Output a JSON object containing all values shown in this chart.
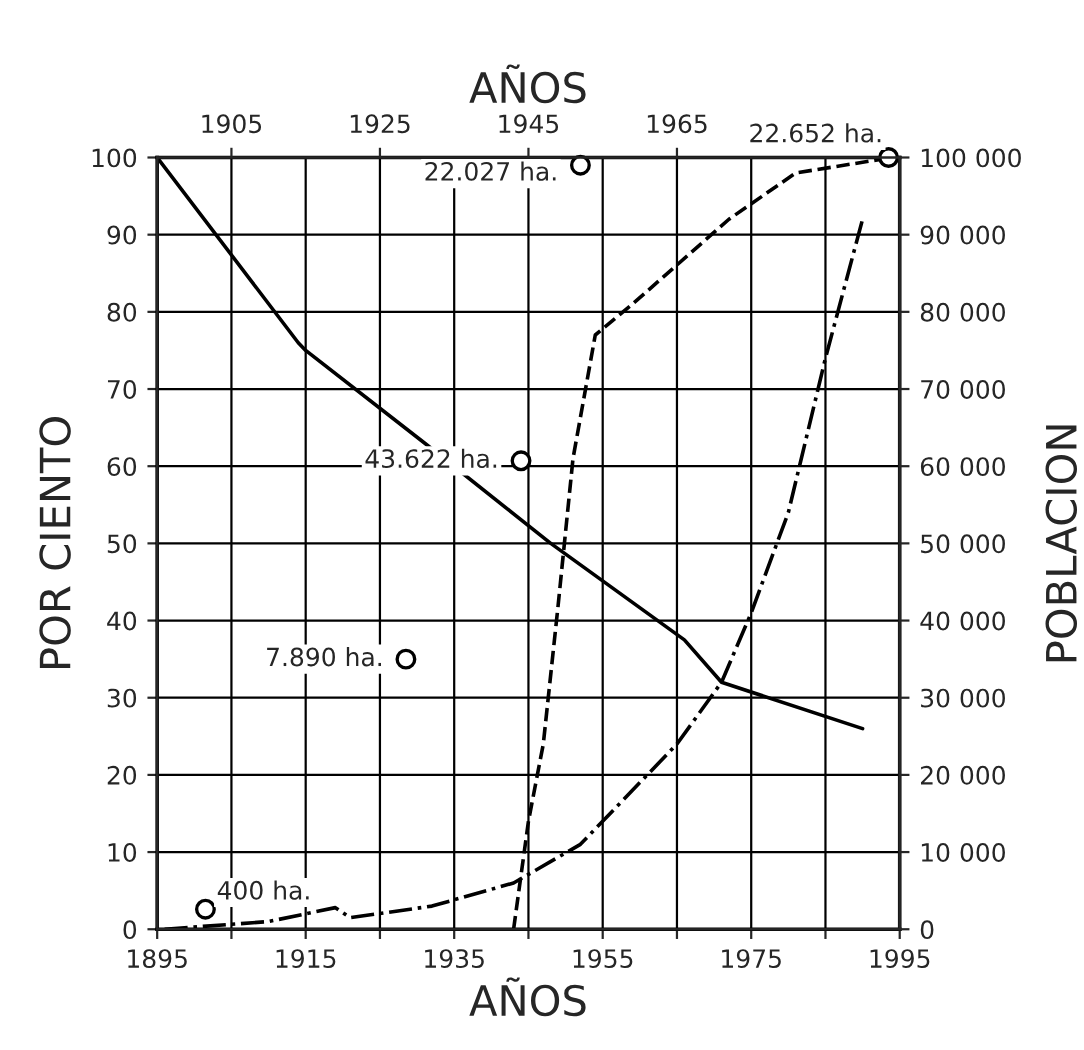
{
  "chart_data": {
    "type": "line",
    "xlabel": "AÑOS",
    "x2label": "AÑOS",
    "ylabel": "POR CIENTO",
    "y2label": "POBLACION",
    "xlim": [
      1895,
      1995
    ],
    "ylim": [
      0,
      100
    ],
    "xticks": [
      1895,
      {
        "value": 1905,
        "label": null
      },
      1915,
      {
        "value": 1925,
        "label": null
      },
      1935,
      {
        "value": 1945,
        "label": null
      },
      1955,
      {
        "value": 1965,
        "label": null
      },
      1975,
      {
        "value": 1985,
        "label": null
      },
      1995
    ],
    "x2lim": [
      1895,
      1995
    ],
    "x2ticks": [
      1905,
      1925,
      1945,
      1965
    ],
    "yticks": [
      0,
      10,
      20,
      30,
      40,
      50,
      60,
      70,
      80,
      90,
      100
    ],
    "y2lim": [
      0,
      100000
    ],
    "y2ticks": [
      0,
      {
        "value": 10000,
        "label": "10 000"
      },
      {
        "value": 20000,
        "label": "20 000"
      },
      {
        "value": 30000,
        "label": "30 000"
      },
      {
        "value": 40000,
        "label": "40 000"
      },
      {
        "value": 50000,
        "label": "50 000"
      },
      {
        "value": 60000,
        "label": "60 000"
      },
      {
        "value": 70000,
        "label": "70 000"
      },
      {
        "value": 80000,
        "label": "80 000"
      },
      {
        "value": 90000,
        "label": "90 000"
      },
      {
        "value": 100000,
        "label": "100 000"
      }
    ],
    "grid": true,
    "series": [
      {
        "color": "#000000",
        "line_style": "solid",
        "x": [
          1895,
          1914,
          1915,
          1931,
          1948,
          1966,
          1971,
          1990
        ],
        "values": [
          100,
          76,
          75,
          63,
          50,
          37.5,
          32,
          26
        ]
      },
      {
        "color": "#000000",
        "line_style": "dashed",
        "x": [
          1943,
          1945,
          1947,
          1949,
          1951,
          1954,
          1959,
          1972,
          1981,
          1994
        ],
        "values": [
          0,
          14,
          24,
          42,
          61,
          77,
          81,
          92,
          98,
          100
        ]
      },
      {
        "color": "#000000",
        "line_style": "dashdot",
        "x": [
          1896,
          1910,
          1919,
          1921,
          1932,
          1943,
          1952,
          1965,
          1971,
          1975,
          1980,
          1985,
          1990
        ],
        "values": [
          0,
          1,
          2.8,
          1.5,
          3,
          6,
          11,
          24,
          32,
          41,
          54,
          74,
          92
        ]
      },
      {
        "type": "scatter",
        "color": "#000000",
        "marker": "circle",
        "x": [
          1901.5,
          1928.5,
          1944,
          1952,
          1993.5
        ],
        "values": [
          2.6,
          35,
          60.7,
          99,
          100
        ]
      }
    ],
    "annotations": [
      {
        "text": "400 ha.",
        "x": 1901.5,
        "y": 2.6
      },
      {
        "text": "7.890 ha.",
        "x": 1928.5,
        "y": 35
      },
      {
        "text": "43.622 ha.",
        "x": 1944,
        "y": 60.7
      },
      {
        "text": "22.027 ha.",
        "x": 1952,
        "y": 99
      },
      {
        "text": "22.652 ha.",
        "x": 1993.5,
        "y": 100
      }
    ]
  }
}
